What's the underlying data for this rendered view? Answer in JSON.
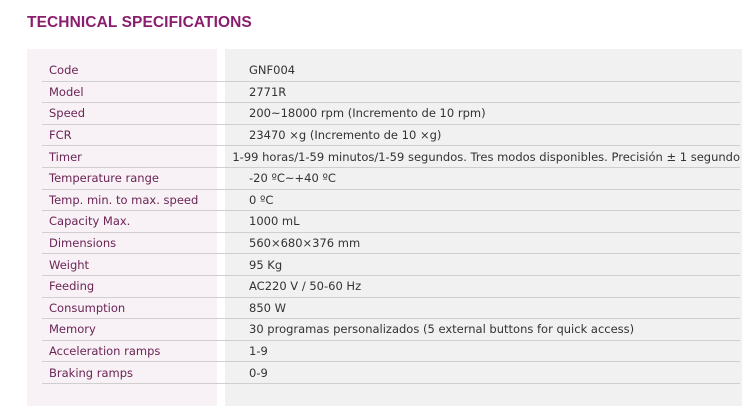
{
  "title": "TECHNICAL SPECIFICATIONS",
  "specs": [
    {
      "label": "Code",
      "value": "GNF004"
    },
    {
      "label": "Model",
      "value": "2771R"
    },
    {
      "label": "Speed",
      "value": "200~18000 rpm (Incremento de 10 rpm)"
    },
    {
      "label": "FCR",
      "value": "23470 ×g (Incremento de 10 ×g)"
    },
    {
      "label": "Timer",
      "value": "1-99 horas/1-59 minutos/1-59 segundos. Tres modos disponibles. Precisión ± 1 segundo"
    },
    {
      "label": "Temperature range",
      "value": "-20 ºC~+40 ºC"
    },
    {
      "label": "Temp. min. to max. speed",
      "value": "0 ºC"
    },
    {
      "label": "Capacity Max.",
      "value": "1000 mL"
    },
    {
      "label": "Dimensions",
      "value": "560×680×376 mm"
    },
    {
      "label": "Weight",
      "value": "95 Kg"
    },
    {
      "label": "Feeding",
      "value": "AC220 V / 50-60 Hz"
    },
    {
      "label": "Consumption",
      "value": "850 W"
    },
    {
      "label": "Memory",
      "value": "30 programas personalizados (5 external buttons for quick access)"
    },
    {
      "label": "Acceleration ramps",
      "value": "1-9"
    },
    {
      "label": "Braking ramps",
      "value": "0-9"
    }
  ],
  "colors": {
    "title": "#8a1e6e",
    "label": "#6b2456",
    "label_bg": "#f8f1f5",
    "value_bg": "#f1f1f1"
  }
}
